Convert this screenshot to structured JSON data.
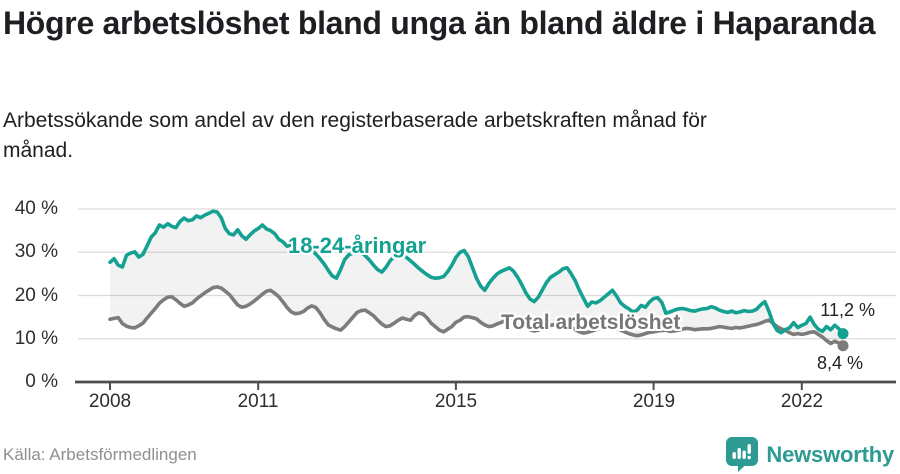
{
  "page": {
    "title": "Högre arbetslöshet bland unga än bland äldre i Haparanda",
    "subtitle": "Arbetssökande som andel av den registerbaserade arbetskraften månad för månad.",
    "source": "Källa: Arbetsförmedlingen",
    "brand": "Newsworthy"
  },
  "chart_data": {
    "type": "line",
    "title": "Högre arbetslöshet bland unga än bland äldre i Haparanda",
    "subtitle": "Arbetssökande som andel av den registerbaserade arbetskraften månad för månad.",
    "frequency": "monthly",
    "x_axis": {
      "tick_labels": [
        "2008",
        "2011",
        "2015",
        "2019",
        "2022"
      ],
      "tick_indices": [
        0,
        36,
        84,
        132,
        168
      ]
    },
    "y_axis": {
      "tick_labels": [
        "0 %",
        "10 %",
        "20 %",
        "30 %",
        "40 %"
      ],
      "range": [
        0,
        40
      ],
      "unit": "%"
    },
    "grid": true,
    "legend_position": "inline-labels",
    "colors": {
      "grid": "#dcdcdc",
      "axis": "#4d4d4d",
      "band": "rgba(0,0,0,0.05)",
      "accent_teal": "#14a191",
      "line_gray": "#7c7c7c",
      "brand_teal": "#2e9b93"
    },
    "band_fill": "rgba(0,0,0,0.05)",
    "series": [
      {
        "id": "youth",
        "name": "18-24-åringar",
        "color": "#14a191",
        "end_label": "11,2 %",
        "end_value": 11.2,
        "values": [
          27.7,
          28.5,
          27.0,
          26.6,
          29.3,
          29.8,
          30.1,
          28.9,
          29.5,
          31.5,
          33.5,
          34.5,
          36.3,
          35.8,
          36.6,
          36.0,
          35.7,
          37.1,
          37.9,
          37.3,
          37.5,
          38.4,
          38.0,
          38.6,
          39.0,
          39.5,
          39.3,
          38.0,
          35.5,
          34.3,
          34.0,
          35.2,
          33.8,
          33.0,
          34.0,
          34.9,
          35.5,
          36.3,
          35.4,
          35.0,
          34.3,
          33.0,
          32.4,
          31.4,
          31.7,
          30.7,
          30.2,
          30.5,
          31.0,
          30.4,
          29.6,
          28.5,
          27.3,
          25.8,
          24.5,
          24.0,
          26.0,
          28.3,
          29.4,
          29.8,
          30.3,
          30.0,
          29.2,
          28.2,
          27.0,
          26.0,
          25.4,
          26.5,
          28.0,
          29.0,
          29.5,
          29.2,
          28.8,
          28.0,
          27.2,
          26.3,
          25.5,
          24.8,
          24.2,
          24.0,
          24.1,
          24.4,
          25.5,
          27.0,
          28.8,
          30.0,
          30.4,
          29.0,
          26.5,
          24.0,
          22.2,
          21.2,
          22.8,
          24.0,
          25.0,
          25.6,
          26.0,
          26.4,
          25.6,
          24.2,
          22.5,
          20.6,
          19.2,
          18.6,
          19.6,
          21.3,
          23.0,
          24.2,
          24.8,
          25.4,
          26.2,
          26.4,
          25.0,
          23.4,
          21.2,
          19.3,
          17.5,
          18.5,
          18.3,
          18.8,
          19.6,
          20.4,
          21.2,
          19.9,
          18.3,
          17.5,
          16.9,
          16.2,
          16.6,
          17.7,
          17.3,
          18.5,
          19.3,
          19.5,
          18.4,
          15.9,
          16.2,
          16.6,
          16.9,
          17.0,
          16.8,
          16.5,
          16.4,
          16.7,
          16.9,
          17.0,
          17.4,
          17.1,
          16.6,
          16.3,
          16.1,
          16.4,
          16.0,
          16.2,
          16.5,
          16.3,
          16.4,
          16.8,
          17.8,
          18.6,
          16.4,
          13.6,
          11.9,
          11.4,
          12.1,
          12.5,
          13.7,
          12.6,
          13.1,
          13.5,
          15.0,
          13.3,
          12.2,
          11.7,
          12.8,
          12.1,
          13.1,
          12.3,
          11.2
        ]
      },
      {
        "id": "total",
        "name": "Total arbetslöshet",
        "color": "#7c7c7c",
        "end_label": "8,4 %",
        "end_value": 8.4,
        "values": [
          14.5,
          14.7,
          14.9,
          13.5,
          12.9,
          12.6,
          12.5,
          13.0,
          13.6,
          14.8,
          15.9,
          17.0,
          18.2,
          19.0,
          19.6,
          19.7,
          19.0,
          18.2,
          17.5,
          17.8,
          18.3,
          19.2,
          19.9,
          20.6,
          21.2,
          21.8,
          22.0,
          21.7,
          21.0,
          20.2,
          19.0,
          17.8,
          17.3,
          17.5,
          18.0,
          18.7,
          19.5,
          20.3,
          21.0,
          21.2,
          20.5,
          19.7,
          18.5,
          17.2,
          16.2,
          15.8,
          15.9,
          16.3,
          17.1,
          17.6,
          17.2,
          16.0,
          14.5,
          13.2,
          12.7,
          12.3,
          12.0,
          12.8,
          13.9,
          15.0,
          16.1,
          16.5,
          16.6,
          16.0,
          15.3,
          14.3,
          13.4,
          12.8,
          13.0,
          13.6,
          14.3,
          14.8,
          14.5,
          14.3,
          15.4,
          16.0,
          15.7,
          14.8,
          13.6,
          12.8,
          12.0,
          11.6,
          12.2,
          12.8,
          13.8,
          14.3,
          15.0,
          15.1,
          14.9,
          14.6,
          13.8,
          13.2,
          12.8,
          13.0,
          13.4,
          13.8,
          14.1,
          14.3,
          14.2,
          13.8,
          13.3,
          12.7,
          12.1,
          11.8,
          12.0,
          12.4,
          12.8,
          13.1,
          13.3,
          13.4,
          13.3,
          13.0,
          12.6,
          12.1,
          11.6,
          11.3,
          11.5,
          11.8,
          12.1,
          12.4,
          12.7,
          12.8,
          12.7,
          12.4,
          12.0,
          11.6,
          11.2,
          10.9,
          10.7,
          10.9,
          11.2,
          11.5,
          11.6,
          11.8,
          11.9,
          12.0,
          11.7,
          11.8,
          12.0,
          12.2,
          12.4,
          12.3,
          12.1,
          12.2,
          12.3,
          12.3,
          12.4,
          12.6,
          12.8,
          12.7,
          12.5,
          12.4,
          12.6,
          12.5,
          12.7,
          12.9,
          13.1,
          13.3,
          13.6,
          14.0,
          14.3,
          13.6,
          12.8,
          12.3,
          11.9,
          11.4,
          11.0,
          11.2,
          11.0,
          11.2,
          11.5,
          11.6,
          11.0,
          10.4,
          9.6,
          8.9,
          9.4,
          9.0,
          8.4
        ]
      }
    ]
  }
}
